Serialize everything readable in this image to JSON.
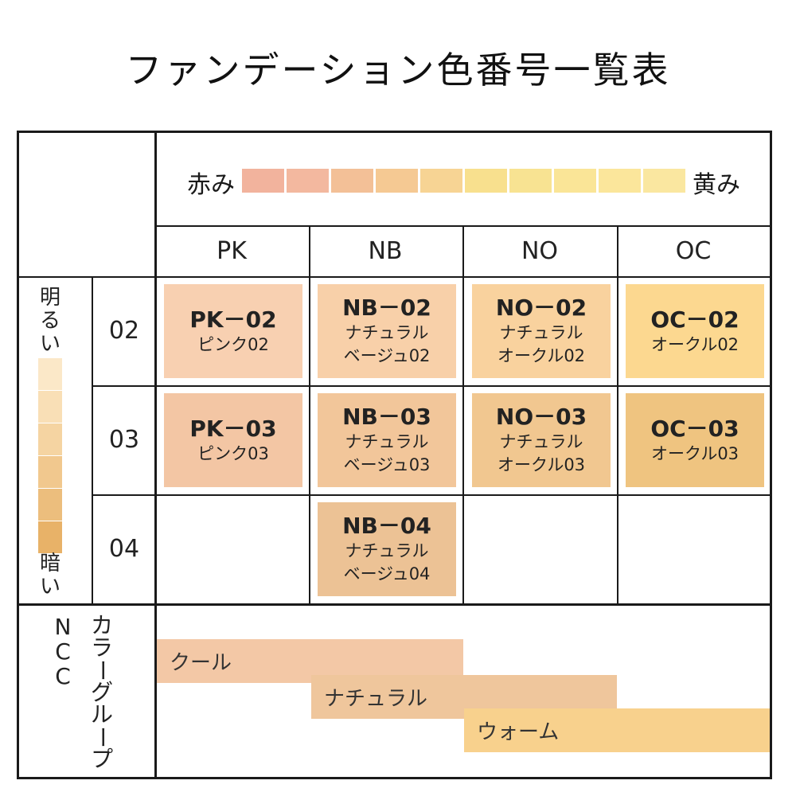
{
  "title": "ファンデーション色番号一覧表",
  "scale": {
    "left_label": "赤み",
    "right_label": "黄み",
    "colors": [
      "#f2b39d",
      "#f3b89f",
      "#f3c097",
      "#f5c993",
      "#f7d494",
      "#f8e08e",
      "#f8e392",
      "#fae597",
      "#fbe69b",
      "#fae7a0"
    ]
  },
  "columns": [
    "PK",
    "NB",
    "NO",
    "OC"
  ],
  "rows": [
    "02",
    "03",
    "04"
  ],
  "brightness": {
    "top_label_1": "明",
    "top_label_2": "る",
    "top_label_3": "い",
    "bottom_label_1": "暗",
    "bottom_label_2": "い",
    "colors": [
      "#fbe8c8",
      "#f9dfb6",
      "#f5d4a2",
      "#f1c88e",
      "#ecbe7d",
      "#e8b268"
    ]
  },
  "cells": {
    "pk02": {
      "code": "PK－02",
      "line1": "ピンク02",
      "line2": "",
      "color": "#f8d0b1"
    },
    "nb02": {
      "code": "NB－02",
      "line1": "ナチュラル",
      "line2": "ベージュ02",
      "color": "#f8d0a9"
    },
    "no02": {
      "code": "NO－02",
      "line1": "ナチュラル",
      "line2": "オークル02",
      "color": "#f9d29e"
    },
    "oc02": {
      "code": "OC－02",
      "line1": "オークル02",
      "line2": "",
      "color": "#fcd890"
    },
    "pk03": {
      "code": "PK－03",
      "line1": "ピンク03",
      "line2": "",
      "color": "#f3c6a4"
    },
    "nb03": {
      "code": "NB－03",
      "line1": "ナチュラル",
      "line2": "ベージュ03",
      "color": "#f2c69a"
    },
    "no03": {
      "code": "NO－03",
      "line1": "ナチュラル",
      "line2": "オークル03",
      "color": "#f1c790"
    },
    "oc03": {
      "code": "OC－03",
      "line1": "オークル03",
      "line2": "",
      "color": "#efc480"
    },
    "nb04": {
      "code": "NB－04",
      "line1": "ナチュラル",
      "line2": "ベージュ04",
      "color": "#ecc295"
    }
  },
  "group": {
    "label_ncc": "NCC",
    "label_group": "カラーグループ",
    "bars": [
      {
        "label": "クール",
        "color": "#f3c8a6"
      },
      {
        "label": "ナチュラル",
        "color": "#efc69c"
      },
      {
        "label": "ウォーム",
        "color": "#f8d18d"
      }
    ]
  }
}
